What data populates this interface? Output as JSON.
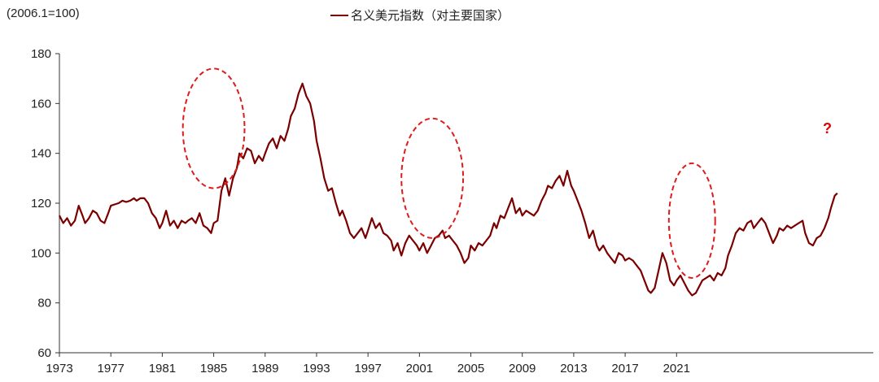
{
  "chart_data": {
    "type": "line",
    "unit_label": "(2006.1=100)",
    "series": [
      {
        "name": "名义美元指数（对主要国家）",
        "color": "#7a0000",
        "points": [
          [
            1973.0,
            115
          ],
          [
            1973.3,
            112
          ],
          [
            1973.6,
            114
          ],
          [
            1973.9,
            111
          ],
          [
            1974.2,
            113
          ],
          [
            1974.5,
            119
          ],
          [
            1974.8,
            115
          ],
          [
            1975.0,
            112
          ],
          [
            1975.3,
            114
          ],
          [
            1975.6,
            117
          ],
          [
            1975.9,
            116
          ],
          [
            1976.2,
            113
          ],
          [
            1976.5,
            112
          ],
          [
            1976.8,
            116
          ],
          [
            1977.0,
            119
          ],
          [
            1977.3,
            119.5
          ],
          [
            1977.6,
            120
          ],
          [
            1977.9,
            121
          ],
          [
            1978.2,
            120.5
          ],
          [
            1978.5,
            121
          ],
          [
            1978.8,
            122
          ],
          [
            1979.0,
            121
          ],
          [
            1979.3,
            122
          ],
          [
            1979.6,
            122
          ],
          [
            1979.9,
            120
          ],
          [
            1980.2,
            116
          ],
          [
            1980.5,
            114
          ],
          [
            1980.8,
            110
          ],
          [
            1981.0,
            112
          ],
          [
            1981.3,
            117
          ],
          [
            1981.6,
            111
          ],
          [
            1981.9,
            113
          ],
          [
            1982.2,
            110
          ],
          [
            1982.5,
            113
          ],
          [
            1982.8,
            112
          ],
          [
            1983.0,
            113
          ],
          [
            1983.3,
            114
          ],
          [
            1983.6,
            112
          ],
          [
            1983.9,
            116
          ],
          [
            1984.2,
            111
          ],
          [
            1984.5,
            110
          ],
          [
            1984.8,
            108
          ],
          [
            1985.0,
            112
          ],
          [
            1985.3,
            113
          ],
          [
            1985.6,
            125
          ],
          [
            1985.9,
            130
          ],
          [
            1986.2,
            123
          ],
          [
            1986.5,
            130
          ],
          [
            1986.8,
            134
          ],
          [
            1987.0,
            140
          ],
          [
            1987.3,
            138
          ],
          [
            1987.6,
            142
          ],
          [
            1987.9,
            141
          ],
          [
            1988.2,
            136
          ],
          [
            1988.5,
            139
          ],
          [
            1988.8,
            137
          ],
          [
            1989.0,
            140
          ],
          [
            1989.3,
            144
          ],
          [
            1989.6,
            146
          ],
          [
            1989.9,
            142
          ],
          [
            1990.2,
            147
          ],
          [
            1990.5,
            145
          ],
          [
            1990.8,
            150
          ],
          [
            1991.0,
            155
          ],
          [
            1991.3,
            158
          ],
          [
            1991.6,
            164
          ],
          [
            1991.9,
            168
          ],
          [
            1992.2,
            163
          ],
          [
            1992.5,
            160
          ],
          [
            1992.8,
            153
          ],
          [
            1993.0,
            145
          ],
          [
            1993.3,
            138
          ],
          [
            1993.6,
            130
          ],
          [
            1993.9,
            125
          ],
          [
            1994.2,
            126
          ],
          [
            1994.5,
            120
          ],
          [
            1994.8,
            115
          ],
          [
            1995.0,
            117
          ],
          [
            1995.3,
            113
          ],
          [
            1995.6,
            108
          ],
          [
            1995.9,
            106
          ],
          [
            1996.2,
            108
          ],
          [
            1996.5,
            110
          ],
          [
            1996.8,
            106
          ],
          [
            1997.0,
            109
          ],
          [
            1997.3,
            114
          ],
          [
            1997.6,
            110
          ],
          [
            1997.9,
            112
          ],
          [
            1998.2,
            108
          ],
          [
            1998.5,
            107
          ],
          [
            1998.8,
            105
          ],
          [
            1999.0,
            101
          ],
          [
            1999.3,
            104
          ],
          [
            1999.6,
            99
          ],
          [
            1999.9,
            104
          ],
          [
            2000.2,
            107
          ],
          [
            2000.5,
            105
          ],
          [
            2000.8,
            103
          ],
          [
            2001.0,
            101
          ],
          [
            2001.3,
            104
          ],
          [
            2001.6,
            100
          ],
          [
            2001.9,
            103
          ],
          [
            2002.2,
            106
          ],
          [
            2002.5,
            107
          ],
          [
            2002.8,
            109
          ],
          [
            2003.0,
            106
          ],
          [
            2003.3,
            107
          ],
          [
            2003.6,
            105
          ],
          [
            2003.9,
            103
          ],
          [
            2004.2,
            100
          ],
          [
            2004.5,
            96
          ],
          [
            2004.8,
            98
          ],
          [
            2005.0,
            103
          ],
          [
            2005.3,
            101
          ],
          [
            2005.6,
            104
          ],
          [
            2005.9,
            103
          ],
          [
            2006.2,
            105
          ],
          [
            2006.5,
            107
          ],
          [
            2006.8,
            112
          ],
          [
            2007.0,
            110
          ],
          [
            2007.3,
            115
          ],
          [
            2007.6,
            114
          ],
          [
            2007.9,
            118
          ],
          [
            2008.2,
            122
          ],
          [
            2008.5,
            116
          ],
          [
            2008.8,
            118
          ],
          [
            2009.0,
            115
          ],
          [
            2009.3,
            117
          ],
          [
            2009.6,
            116
          ],
          [
            2009.9,
            115
          ],
          [
            2010.2,
            117
          ],
          [
            2010.5,
            121
          ],
          [
            2010.8,
            124
          ],
          [
            2011.0,
            127
          ],
          [
            2011.3,
            126
          ],
          [
            2011.6,
            129
          ],
          [
            2011.9,
            131
          ],
          [
            2012.2,
            127
          ],
          [
            2012.5,
            133
          ],
          [
            2012.8,
            127
          ],
          [
            2013.0,
            125
          ],
          [
            2013.3,
            121
          ],
          [
            2013.6,
            117
          ],
          [
            2013.9,
            112
          ],
          [
            2014.2,
            106
          ],
          [
            2014.5,
            109
          ],
          [
            2014.8,
            103
          ],
          [
            2015.0,
            101
          ],
          [
            2015.3,
            103
          ],
          [
            2015.6,
            100
          ],
          [
            2015.9,
            98
          ],
          [
            2016.2,
            96
          ],
          [
            2016.5,
            100
          ],
          [
            2016.8,
            99
          ],
          [
            2017.0,
            97
          ],
          [
            2017.3,
            98
          ],
          [
            2017.6,
            97
          ],
          [
            2017.9,
            95
          ],
          [
            2018.2,
            93
          ],
          [
            2018.5,
            89
          ],
          [
            2018.8,
            85
          ],
          [
            2019.0,
            84
          ],
          [
            2019.3,
            86
          ],
          [
            2019.6,
            93
          ],
          [
            2019.9,
            100
          ],
          [
            2020.2,
            96
          ],
          [
            2020.5,
            89
          ],
          [
            2020.8,
            87
          ],
          [
            2021.0,
            89
          ],
          [
            2021.3,
            91
          ],
          [
            2021.6,
            88
          ],
          [
            2021.9,
            85
          ],
          [
            2022.2,
            83
          ],
          [
            2022.5,
            84
          ],
          [
            2022.8,
            87
          ],
          [
            2023.0,
            89
          ],
          [
            2023.3,
            90
          ],
          [
            2023.6,
            91
          ],
          [
            2023.9,
            89
          ],
          [
            2024.2,
            92
          ],
          [
            2024.5,
            91
          ],
          [
            2024.8,
            94
          ],
          [
            2025.0,
            99
          ],
          [
            2025.3,
            103
          ],
          [
            2025.6,
            108
          ],
          [
            2025.9,
            110
          ],
          [
            2026.2,
            109
          ],
          [
            2026.5,
            112
          ],
          [
            2026.8,
            113
          ],
          [
            2027.0,
            110
          ],
          [
            2027.3,
            112
          ],
          [
            2027.6,
            114
          ],
          [
            2027.9,
            112
          ],
          [
            2028.2,
            108
          ],
          [
            2028.5,
            104
          ],
          [
            2028.8,
            107
          ],
          [
            2029.0,
            110
          ],
          [
            2029.3,
            109
          ],
          [
            2029.6,
            111
          ],
          [
            2029.9,
            110
          ],
          [
            2030.2,
            111
          ],
          [
            2030.5,
            112
          ],
          [
            2030.8,
            113
          ],
          [
            2031.0,
            108
          ],
          [
            2031.3,
            104
          ],
          [
            2031.6,
            103
          ],
          [
            2031.9,
            106
          ],
          [
            2032.2,
            107
          ],
          [
            2032.5,
            110
          ],
          [
            2032.8,
            114
          ],
          [
            2033.0,
            118
          ],
          [
            2033.3,
            123
          ],
          [
            2033.5,
            124
          ]
        ]
      }
    ],
    "xlim": [
      1973.0,
      2036.3
    ],
    "ylim": [
      60,
      180
    ],
    "x_ticks": [
      "1973",
      "1977",
      "1981",
      "1985",
      "1989",
      "1993",
      "1997",
      "2001",
      "2005",
      "2009",
      "2013",
      "2017",
      "2021"
    ],
    "x_tick_positions": [
      1973,
      1977,
      1981,
      1985,
      1989,
      1993,
      1997,
      2001,
      2005,
      2009,
      2013,
      2017,
      2021
    ],
    "y_ticks": [
      60,
      80,
      100,
      120,
      140,
      160,
      180
    ],
    "annotations": {
      "highlight_circles": [
        {
          "label": "1985 peak",
          "cx": 1985.0,
          "cy": 150,
          "rx": 2.4,
          "ry": 24
        },
        {
          "label": "2001 peak",
          "cx": 2002.0,
          "cy": 130,
          "rx": 2.4,
          "ry": 24
        },
        {
          "label": "2022 rise",
          "cx": 2022.2,
          "cy": 113,
          "rx": 1.8,
          "ry": 23
        }
      ],
      "question_mark": "?",
      "circle_color": "#dd1c1c"
    },
    "grid": false,
    "legend_position": "top-center"
  }
}
